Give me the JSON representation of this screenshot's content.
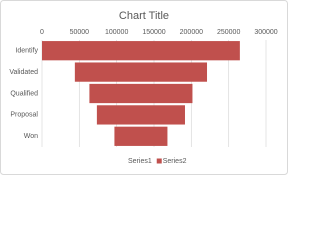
{
  "chart_data": {
    "type": "bar",
    "orientation": "horizontal",
    "stacked": true,
    "title": "Chart Title",
    "categories": [
      "Identify",
      "Validated",
      "Qualified",
      "Proposal",
      "Won"
    ],
    "series": [
      {
        "name": "Series1",
        "color": "none",
        "values": [
          0,
          44000,
          63500,
          73500,
          97000
        ]
      },
      {
        "name": "Series2",
        "color": "#c0504d",
        "values": [
          265000,
          177000,
          138000,
          118000,
          71000
        ]
      }
    ],
    "xlim": [
      0,
      300000
    ],
    "xticks": [
      0,
      50000,
      100000,
      150000,
      200000,
      250000,
      300000
    ],
    "grid": true,
    "legend": "bottom"
  }
}
